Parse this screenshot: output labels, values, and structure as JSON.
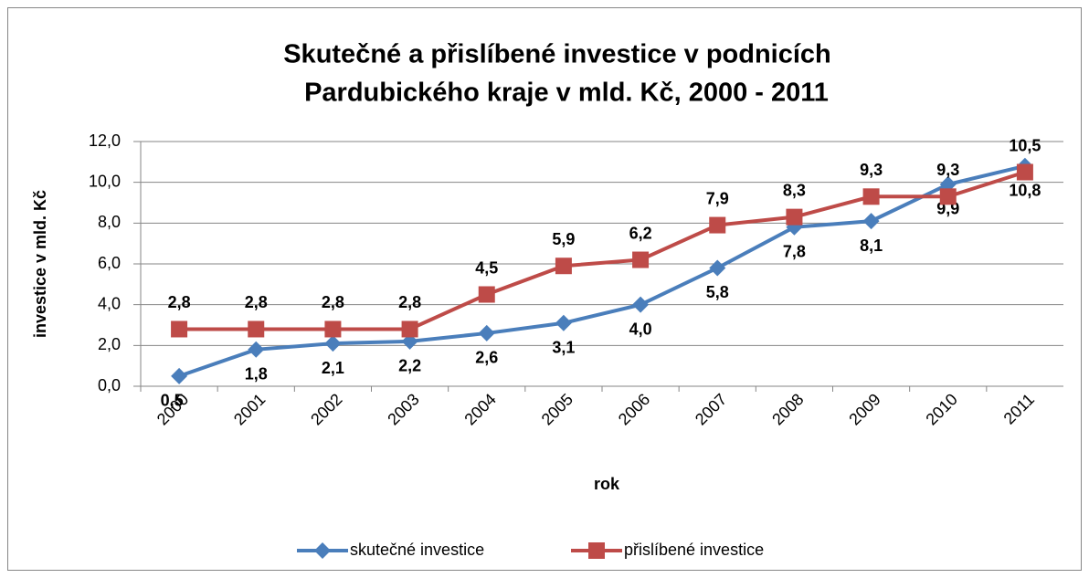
{
  "chart_data": {
    "type": "line",
    "title": [
      "Skutečné a přislíbené investice v podnicích",
      "Pardubického kraje v mld. Kč, 2000 - 2011"
    ],
    "x_label": "rok",
    "y_label": "investice v mld. Kč",
    "categories": [
      "2000",
      "2001",
      "2002",
      "2003",
      "2004",
      "2005",
      "2006",
      "2007",
      "2008",
      "2009",
      "2010",
      "2011"
    ],
    "series": [
      {
        "name": "skutečné investice",
        "color": "#4a7ebb",
        "marker": "diamond",
        "values": [
          0.5,
          1.8,
          2.1,
          2.2,
          2.6,
          3.1,
          4.0,
          5.8,
          7.8,
          8.1,
          9.9,
          10.8
        ],
        "value_labels": [
          "0,5",
          "1,8",
          "2,1",
          "2,2",
          "2,6",
          "3,1",
          "4,0",
          "5,8",
          "7,8",
          "8,1",
          "9,9",
          "10,8"
        ]
      },
      {
        "name": "přislíbené investice",
        "color": "#be4b48",
        "marker": "square",
        "values": [
          2.8,
          2.8,
          2.8,
          2.8,
          4.5,
          5.9,
          6.2,
          7.9,
          8.3,
          9.3,
          9.3,
          10.5
        ],
        "value_labels": [
          "2,8",
          "2,8",
          "2,8",
          "2,8",
          "4,5",
          "5,9",
          "6,2",
          "7,9",
          "8,3",
          "9,3",
          "9,3",
          "10,5"
        ]
      }
    ],
    "ylim": [
      0,
      12
    ],
    "yticks": [
      {
        "value": 0,
        "label": "0,0"
      },
      {
        "value": 2,
        "label": "2,0"
      },
      {
        "value": 4,
        "label": "4,0"
      },
      {
        "value": 6,
        "label": "6,0"
      },
      {
        "value": 8,
        "label": "8,0"
      },
      {
        "value": 10,
        "label": "10,0"
      },
      {
        "value": 12,
        "label": "12,0"
      }
    ],
    "grid": true,
    "legend": "bottom"
  }
}
